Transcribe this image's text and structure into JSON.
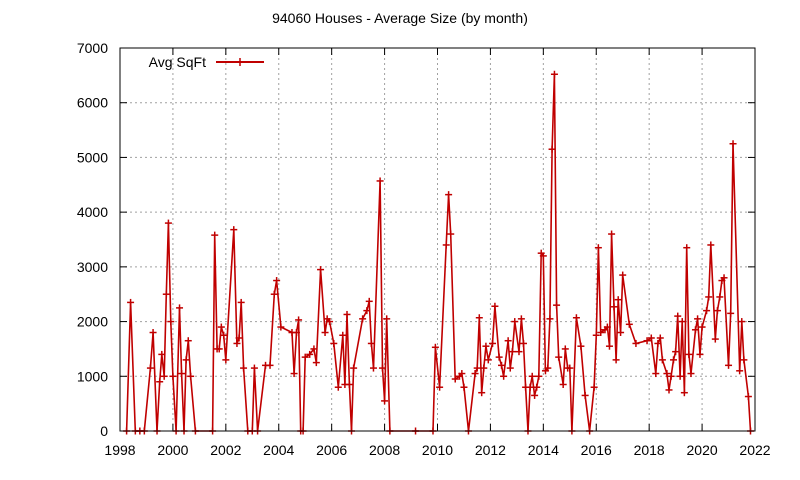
{
  "chart_data": {
    "type": "line",
    "title": "94060 Houses - Average Size (by month)",
    "xlabel": "",
    "ylabel": "",
    "xlim": [
      1998,
      2022
    ],
    "ylim": [
      0,
      7000
    ],
    "x_ticks": [
      "1998",
      "2000",
      "2002",
      "2004",
      "2006",
      "2008",
      "2010",
      "2012",
      "2014",
      "2016",
      "2018",
      "2020",
      "2022"
    ],
    "y_ticks": [
      "0",
      "1000",
      "2000",
      "3000",
      "4000",
      "5000",
      "6000",
      "7000"
    ],
    "grid": true,
    "legend_position": "top-left",
    "colors": {
      "series": "#c00000",
      "grid": "#a0a0a0",
      "frame": "#000000"
    },
    "series": [
      {
        "name": "Avg SqFt",
        "points": [
          [
            1998.25,
            0
          ],
          [
            1998.4,
            2350
          ],
          [
            1998.58,
            0
          ],
          [
            1998.75,
            0
          ],
          [
            1998.92,
            0
          ],
          [
            1999.15,
            1150
          ],
          [
            1999.25,
            1800
          ],
          [
            1999.4,
            0
          ],
          [
            1999.5,
            900
          ],
          [
            1999.58,
            1400
          ],
          [
            1999.67,
            1000
          ],
          [
            1999.75,
            2500
          ],
          [
            1999.83,
            3800
          ],
          [
            1999.92,
            2000
          ],
          [
            2000.0,
            1000
          ],
          [
            2000.12,
            0
          ],
          [
            2000.25,
            2250
          ],
          [
            2000.33,
            1050
          ],
          [
            2000.42,
            0
          ],
          [
            2000.5,
            1300
          ],
          [
            2000.58,
            1650
          ],
          [
            2000.67,
            1000
          ],
          [
            2000.85,
            0
          ],
          [
            2001.5,
            0
          ],
          [
            2001.58,
            3580
          ],
          [
            2001.67,
            1500
          ],
          [
            2001.75,
            1500
          ],
          [
            2001.83,
            1900
          ],
          [
            2001.92,
            1750
          ],
          [
            2002.0,
            1300
          ],
          [
            2002.3,
            3680
          ],
          [
            2002.42,
            1600
          ],
          [
            2002.5,
            1700
          ],
          [
            2002.58,
            2350
          ],
          [
            2002.67,
            1150
          ],
          [
            2002.83,
            0
          ],
          [
            2003.0,
            0
          ],
          [
            2003.08,
            1150
          ],
          [
            2003.2,
            0
          ],
          [
            2003.5,
            1200
          ],
          [
            2003.67,
            1200
          ],
          [
            2003.83,
            2500
          ],
          [
            2003.92,
            2750
          ],
          [
            2004.08,
            1900
          ],
          [
            2004.5,
            1800
          ],
          [
            2004.58,
            1050
          ],
          [
            2004.67,
            1800
          ],
          [
            2004.75,
            2030
          ],
          [
            2004.83,
            0
          ],
          [
            2004.92,
            0
          ],
          [
            2005.0,
            1350
          ],
          [
            2005.17,
            1400
          ],
          [
            2005.33,
            1500
          ],
          [
            2005.42,
            1250
          ],
          [
            2005.58,
            2950
          ],
          [
            2005.75,
            1800
          ],
          [
            2005.83,
            2050
          ],
          [
            2005.92,
            2000
          ],
          [
            2006.08,
            1600
          ],
          [
            2006.25,
            800
          ],
          [
            2006.42,
            1750
          ],
          [
            2006.5,
            850
          ],
          [
            2006.58,
            2130
          ],
          [
            2006.67,
            850
          ],
          [
            2006.75,
            0
          ],
          [
            2006.83,
            1150
          ],
          [
            2007.17,
            2050
          ],
          [
            2007.33,
            2200
          ],
          [
            2007.42,
            2370
          ],
          [
            2007.5,
            1600
          ],
          [
            2007.58,
            1150
          ],
          [
            2007.83,
            4570
          ],
          [
            2007.92,
            1150
          ],
          [
            2008.0,
            550
          ],
          [
            2008.08,
            2050
          ],
          [
            2008.2,
            0
          ],
          [
            2009.17,
            0
          ],
          [
            2009.83,
            0
          ],
          [
            2009.92,
            1530
          ],
          [
            2010.08,
            800
          ],
          [
            2010.33,
            3400
          ],
          [
            2010.42,
            4320
          ],
          [
            2010.5,
            3600
          ],
          [
            2010.67,
            950
          ],
          [
            2010.83,
            1000
          ],
          [
            2010.92,
            1050
          ],
          [
            2011.0,
            800
          ],
          [
            2011.17,
            0
          ],
          [
            2011.42,
            1050
          ],
          [
            2011.5,
            1150
          ],
          [
            2011.58,
            2070
          ],
          [
            2011.67,
            700
          ],
          [
            2011.75,
            1150
          ],
          [
            2011.83,
            1550
          ],
          [
            2011.92,
            1300
          ],
          [
            2012.08,
            1600
          ],
          [
            2012.17,
            2280
          ],
          [
            2012.33,
            1350
          ],
          [
            2012.42,
            1200
          ],
          [
            2012.5,
            1000
          ],
          [
            2012.67,
            1650
          ],
          [
            2012.75,
            1150
          ],
          [
            2012.83,
            1450
          ],
          [
            2012.92,
            2000
          ],
          [
            2013.08,
            1450
          ],
          [
            2013.17,
            2050
          ],
          [
            2013.25,
            1600
          ],
          [
            2013.33,
            800
          ],
          [
            2013.42,
            0
          ],
          [
            2013.5,
            800
          ],
          [
            2013.58,
            1000
          ],
          [
            2013.67,
            650
          ],
          [
            2013.75,
            800
          ],
          [
            2013.83,
            1000
          ],
          [
            2013.92,
            3250
          ],
          [
            2014.0,
            3200
          ],
          [
            2014.08,
            1100
          ],
          [
            2014.17,
            1150
          ],
          [
            2014.25,
            2050
          ],
          [
            2014.33,
            5150
          ],
          [
            2014.42,
            6520
          ],
          [
            2014.5,
            2300
          ],
          [
            2014.58,
            1350
          ],
          [
            2014.75,
            850
          ],
          [
            2014.83,
            1500
          ],
          [
            2014.92,
            1150
          ],
          [
            2015.0,
            1150
          ],
          [
            2015.08,
            0
          ],
          [
            2015.25,
            2070
          ],
          [
            2015.42,
            1550
          ],
          [
            2015.58,
            650
          ],
          [
            2015.75,
            0
          ],
          [
            2015.92,
            800
          ],
          [
            2016.0,
            1750
          ],
          [
            2016.08,
            3350
          ],
          [
            2016.17,
            1800
          ],
          [
            2016.33,
            1850
          ],
          [
            2016.42,
            1900
          ],
          [
            2016.5,
            1550
          ],
          [
            2016.58,
            3600
          ],
          [
            2016.67,
            2270
          ],
          [
            2016.75,
            1300
          ],
          [
            2016.83,
            2400
          ],
          [
            2016.92,
            1800
          ],
          [
            2017.0,
            2850
          ],
          [
            2017.25,
            1950
          ],
          [
            2017.5,
            1600
          ],
          [
            2017.92,
            1650
          ],
          [
            2018.08,
            1700
          ],
          [
            2018.25,
            1050
          ],
          [
            2018.33,
            1600
          ],
          [
            2018.42,
            1700
          ],
          [
            2018.5,
            1300
          ],
          [
            2018.67,
            1050
          ],
          [
            2018.75,
            750
          ],
          [
            2018.83,
            1000
          ],
          [
            2018.92,
            1300
          ],
          [
            2019.0,
            1450
          ],
          [
            2019.08,
            2100
          ],
          [
            2019.17,
            1000
          ],
          [
            2019.25,
            2000
          ],
          [
            2019.33,
            700
          ],
          [
            2019.42,
            3350
          ],
          [
            2019.5,
            1400
          ],
          [
            2019.58,
            1050
          ],
          [
            2019.75,
            1850
          ],
          [
            2019.83,
            2050
          ],
          [
            2019.92,
            1400
          ],
          [
            2020.0,
            1900
          ],
          [
            2020.17,
            2200
          ],
          [
            2020.25,
            2450
          ],
          [
            2020.33,
            3400
          ],
          [
            2020.5,
            1680
          ],
          [
            2020.58,
            2200
          ],
          [
            2020.67,
            2450
          ],
          [
            2020.75,
            2750
          ],
          [
            2020.83,
            2800
          ],
          [
            2021.0,
            1200
          ],
          [
            2021.08,
            2150
          ],
          [
            2021.17,
            5250
          ],
          [
            2021.42,
            1100
          ],
          [
            2021.5,
            2000
          ],
          [
            2021.58,
            1300
          ],
          [
            2021.75,
            630
          ],
          [
            2021.83,
            0
          ]
        ]
      }
    ]
  }
}
